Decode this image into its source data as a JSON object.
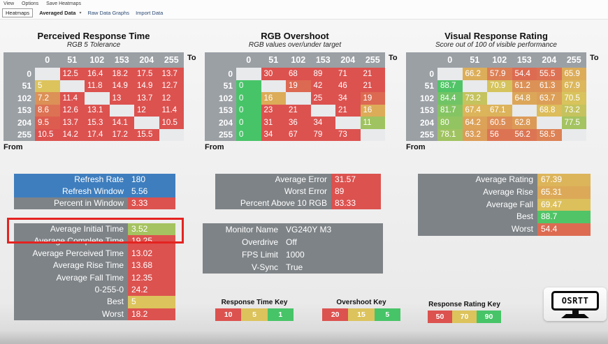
{
  "menu": [
    "View",
    "Options",
    "Save Heatmaps"
  ],
  "tabs": {
    "heatmaps": "Heatmaps",
    "averaged": "Averaged Data",
    "raw": "Raw Data Graphs",
    "import": "Import Data"
  },
  "axis": {
    "to": "To",
    "from": "From"
  },
  "colors": {
    "red": "#dc524f",
    "yellow": "#dcc35c",
    "green": "#47c468",
    "blue": "#3e7ebe",
    "header_gray": "#9ba0a5",
    "label_gray": "#7e8387",
    "blank_cell": "#e8eaec",
    "highlight_red": "#e42320"
  },
  "keys": {
    "time": {
      "good": 1,
      "mid": 5,
      "bad": 10
    },
    "overshoot": {
      "good": 5,
      "mid": 15,
      "bad": 20
    },
    "rating": {
      "good": 90,
      "mid": 70,
      "bad": 50
    }
  },
  "heatmaps": [
    {
      "title": "Perceived Response Time",
      "subtitle": "RGB 5 Tolerance",
      "key": "time",
      "levels": [
        0,
        51,
        102,
        153,
        204,
        255
      ],
      "rows": [
        [
          null,
          12.5,
          16.4,
          18.2,
          17.5,
          13.7
        ],
        [
          5,
          null,
          11.8,
          14.9,
          14.9,
          12.7
        ],
        [
          7.2,
          11.4,
          null,
          13,
          13.7,
          12
        ],
        [
          8.6,
          12.6,
          13.1,
          null,
          12,
          11.4
        ],
        [
          9.5,
          13.7,
          15.3,
          14.1,
          null,
          10.5
        ],
        [
          10.5,
          14.2,
          17.4,
          17.2,
          15.5,
          null
        ]
      ]
    },
    {
      "title": "RGB Overshoot",
      "subtitle": "RGB values over/under target",
      "key": "overshoot",
      "levels": [
        0,
        51,
        102,
        153,
        204,
        255
      ],
      "rows": [
        [
          null,
          30,
          68,
          89,
          71,
          21
        ],
        [
          0,
          null,
          19,
          42,
          46,
          21
        ],
        [
          0,
          16,
          null,
          25,
          34,
          19
        ],
        [
          0,
          23,
          21,
          null,
          21,
          16
        ],
        [
          0,
          31,
          36,
          34,
          null,
          11
        ],
        [
          0,
          34,
          67,
          79,
          73,
          null
        ]
      ]
    },
    {
      "title": "Visual Response Rating",
      "subtitle": "Score out of 100 of visible performance",
      "key": "rating",
      "levels": [
        0,
        51,
        102,
        153,
        204,
        255
      ],
      "rows": [
        [
          null,
          66.2,
          57.9,
          54.4,
          55.5,
          65.9
        ],
        [
          88.7,
          null,
          70.9,
          61.2,
          61.3,
          67.9
        ],
        [
          84.4,
          73.2,
          null,
          64.8,
          63.7,
          70.5
        ],
        [
          81.7,
          67.4,
          67.1,
          null,
          68.8,
          73.2
        ],
        [
          80,
          64.2,
          60.5,
          62.8,
          null,
          77.5
        ],
        [
          78.1,
          63.2,
          56,
          56.2,
          58.5,
          null
        ]
      ]
    }
  ],
  "stats": {
    "refresh": {
      "rows": [
        {
          "label": "Refresh Rate",
          "value": "180",
          "bg": "blue"
        },
        {
          "label": "Refresh Window",
          "value": "5.56",
          "bg": "blue"
        },
        {
          "label": "Percent in Window",
          "value": "3.33",
          "color": "red"
        }
      ]
    },
    "times": {
      "key": "time",
      "rows": [
        {
          "label": "Average Initial Time",
          "value": "3.52"
        },
        {
          "label": "Average Complete Time",
          "value": "19.25"
        },
        {
          "label": "Average Perceived Time",
          "value": "13.02"
        },
        {
          "label": "Average Rise Time",
          "value": "13.68"
        },
        {
          "label": "Average Fall Time",
          "value": "12.35"
        },
        {
          "label": "0-255-0",
          "value": "24.2"
        },
        {
          "label": "Best",
          "value": "5"
        },
        {
          "label": "Worst",
          "value": "18.2"
        }
      ]
    },
    "overshoot": {
      "key": "overshoot",
      "rows": [
        {
          "label": "Average Error",
          "value": "31.57"
        },
        {
          "label": "Worst Error",
          "value": "89"
        },
        {
          "label": "Percent Above 10 RGB",
          "value": "83.33"
        }
      ]
    },
    "monitor": {
      "rows": [
        {
          "label": "Monitor Name",
          "value": "VG240Y M3"
        },
        {
          "label": "Overdrive",
          "value": "Off"
        },
        {
          "label": "FPS Limit",
          "value": "1000"
        },
        {
          "label": "V-Sync",
          "value": "True"
        }
      ]
    },
    "rating": {
      "key": "rating",
      "rows": [
        {
          "label": "Average Rating",
          "value": "67.39"
        },
        {
          "label": "Average Rise",
          "value": "65.31"
        },
        {
          "label": "Average Fall",
          "value": "69.47"
        },
        {
          "label": "Best",
          "value": "88.7"
        },
        {
          "label": "Worst",
          "value": "54.4"
        }
      ]
    }
  },
  "legends": [
    {
      "title": "Response Time Key",
      "values": [
        10,
        5,
        1
      ]
    },
    {
      "title": "Overshoot Key",
      "values": [
        20,
        15,
        5
      ]
    },
    {
      "title": "Response Rating Key",
      "values": [
        50,
        70,
        90
      ]
    }
  ],
  "logo": {
    "text": "OSRTT"
  }
}
